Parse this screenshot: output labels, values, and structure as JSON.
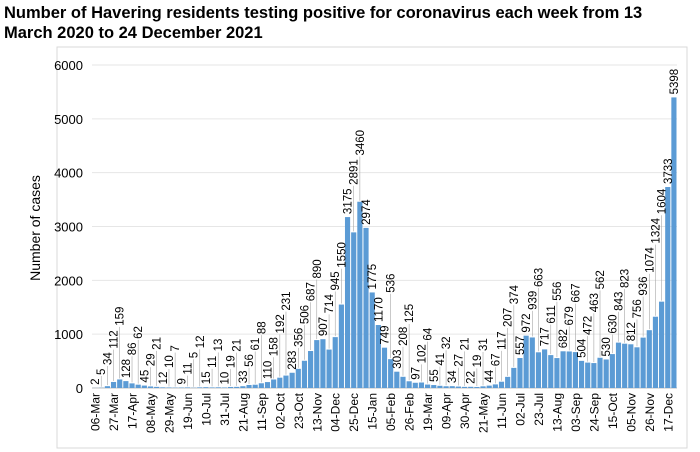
{
  "chart_data": {
    "type": "bar",
    "title": "Number of Havering residents testing positive for coronavirus each week from 13 March 2020 to 24 December 2021",
    "xlabel": "",
    "ylabel": "Number of cases",
    "ylim": [
      0,
      6000
    ],
    "yticks": [
      "0",
      "1000",
      "2000",
      "3000",
      "4000",
      "5000",
      "6000"
    ],
    "grid": true,
    "legend": "none",
    "bar_color": "#5b9bd5",
    "x_tick_labels": [
      "06-Mar",
      "27-Mar",
      "17-Apr",
      "08-May",
      "29-May",
      "19-Jun",
      "10-Jul",
      "31-Jul",
      "21-Aug",
      "11-Sep",
      "02-Oct",
      "23-Oct",
      "13-Nov",
      "04-Dec",
      "25-Dec",
      "15-Jan",
      "05-Feb",
      "26-Feb",
      "19-Mar",
      "09-Apr",
      "30-Apr",
      "21-May",
      "11-Jun",
      "02-Jul",
      "23-Jul",
      "13-Aug",
      "03-Sep",
      "24-Sep",
      "15-Oct",
      "05-Nov",
      "26-Nov",
      "17-Dec"
    ],
    "values": [
      2,
      5,
      34,
      112,
      159,
      128,
      86,
      62,
      45,
      29,
      21,
      12,
      10,
      7,
      9,
      11,
      5,
      12,
      15,
      11,
      13,
      10,
      19,
      21,
      33,
      56,
      61,
      88,
      110,
      158,
      192,
      231,
      283,
      356,
      506,
      687,
      890,
      907,
      714,
      945,
      1550,
      3175,
      2891,
      3460,
      2974,
      1775,
      1170,
      749,
      536,
      303,
      208,
      125,
      97,
      102,
      64,
      55,
      41,
      32,
      34,
      27,
      21,
      22,
      19,
      31,
      44,
      67,
      117,
      207,
      374,
      557,
      972,
      939,
      663,
      717,
      611,
      556,
      682,
      679,
      667,
      504,
      472,
      463,
      562,
      530,
      630,
      843,
      823,
      812,
      756,
      936,
      1074,
      1324,
      1604,
      3733,
      5398
    ]
  }
}
